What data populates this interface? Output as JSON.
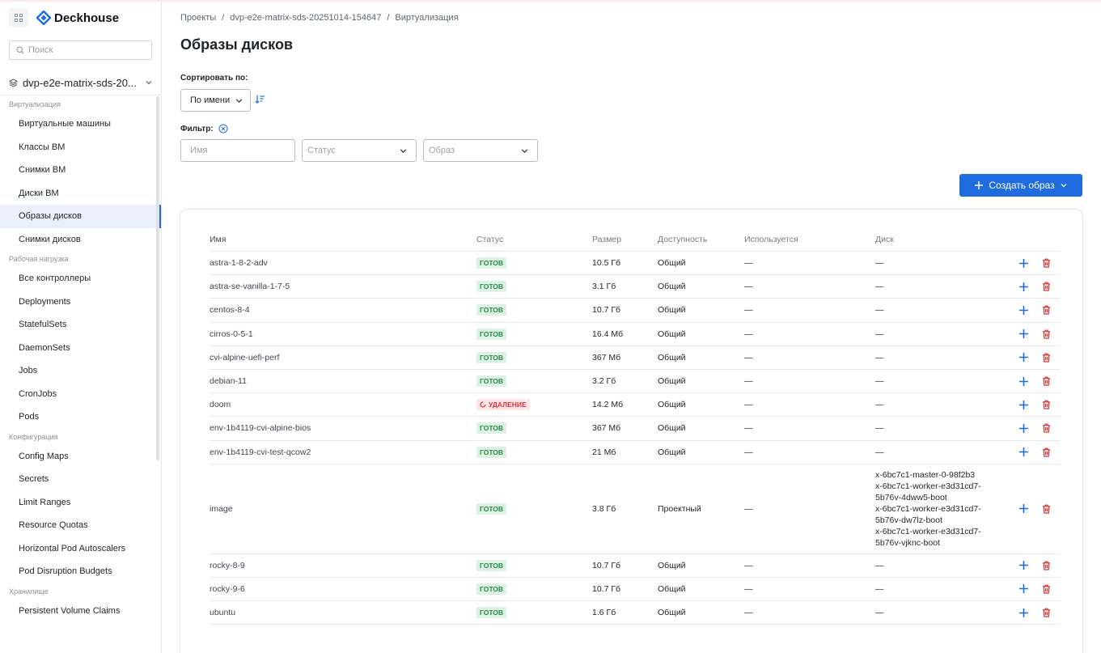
{
  "app": {
    "name": "Deckhouse"
  },
  "sidebar": {
    "search_placeholder": "Поиск",
    "project": "dvp-e2e-matrix-sds-20...",
    "groups": [
      {
        "title": "Виртуализация",
        "items": [
          "Виртуальные машины",
          "Классы ВМ",
          "Снимки ВМ",
          "Диски ВМ",
          "Образы дисков",
          "Снимки дисков"
        ]
      },
      {
        "title": "Рабочая нагрузка",
        "items": [
          "Все контроллеры",
          "Deployments",
          "StatefulSets",
          "DaemonSets",
          "Jobs",
          "CronJobs",
          "Pods"
        ]
      },
      {
        "title": "Конфигурация",
        "items": [
          "Config Maps",
          "Secrets",
          "Limit Ranges",
          "Resource Quotas",
          "Horizontal Pod Autoscalers",
          "Pod Disruption Budgets"
        ]
      },
      {
        "title": "Хранилище",
        "items": [
          "Persistent Volume Claims"
        ]
      }
    ],
    "active_item": "Образы дисков"
  },
  "breadcrumb": [
    "Проекты",
    "dvp-e2e-matrix-sds-20251014-154647",
    "Виртуализация"
  ],
  "page": {
    "title": "Образы дисков",
    "sort_label": "Сортировать по:",
    "sort_value": "По имени",
    "filter_label": "Фильтр:",
    "filter_name_placeholder": "Имя",
    "filter_status_placeholder": "Статус",
    "filter_image_placeholder": "Образ",
    "create_button": "Создать образ"
  },
  "table": {
    "columns": [
      "Имя",
      "Статус",
      "Размер",
      "Доступность",
      "Используется",
      "Диск"
    ],
    "rows": [
      {
        "name": "astra-1-8-2-adv",
        "status": "ГОТОВ",
        "status_type": "ok",
        "size": "10.5 Гб",
        "access": "Общий",
        "used": "—",
        "disk": [
          "—"
        ]
      },
      {
        "name": "astra-se-vanilla-1-7-5",
        "status": "ГОТОВ",
        "status_type": "ok",
        "size": "3.1 Гб",
        "access": "Общий",
        "used": "—",
        "disk": [
          "—"
        ]
      },
      {
        "name": "centos-8-4",
        "status": "ГОТОВ",
        "status_type": "ok",
        "size": "10.7 Гб",
        "access": "Общий",
        "used": "—",
        "disk": [
          "—"
        ]
      },
      {
        "name": "cirros-0-5-1",
        "status": "ГОТОВ",
        "status_type": "ok",
        "size": "16.4 Мб",
        "access": "Общий",
        "used": "—",
        "disk": [
          "—"
        ]
      },
      {
        "name": "cvi-alpine-uefi-perf",
        "status": "ГОТОВ",
        "status_type": "ok",
        "size": "367 Мб",
        "access": "Общий",
        "used": "—",
        "disk": [
          "—"
        ]
      },
      {
        "name": "debian-11",
        "status": "ГОТОВ",
        "status_type": "ok",
        "size": "3.2 Гб",
        "access": "Общий",
        "used": "—",
        "disk": [
          "—"
        ]
      },
      {
        "name": "doom",
        "status": "УДАЛЕНИЕ",
        "status_type": "del",
        "size": "14.2 Мб",
        "access": "Общий",
        "used": "—",
        "disk": [
          "—"
        ]
      },
      {
        "name": "env-1b4119-cvi-alpine-bios",
        "status": "ГОТОВ",
        "status_type": "ok",
        "size": "367 Мб",
        "access": "Общий",
        "used": "—",
        "disk": [
          "—"
        ]
      },
      {
        "name": "env-1b4119-cvi-test-qcow2",
        "status": "ГОТОВ",
        "status_type": "ok",
        "size": "21 Мб",
        "access": "Общий",
        "used": "—",
        "disk": [
          "—"
        ]
      },
      {
        "name": "image",
        "status": "ГОТОВ",
        "status_type": "ok",
        "size": "3.8 Гб",
        "access": "Проектный",
        "used": "—",
        "disk": [
          "x-6bc7c1-master-0-98f2b3",
          "x-6bc7c1-worker-e3d31cd7-",
          "5b76v-4dww5-boot",
          "x-6bc7c1-worker-e3d31cd7-",
          "5b76v-dw7lz-boot",
          "x-6bc7c1-worker-e3d31cd7-",
          "5b76v-vjknc-boot"
        ]
      },
      {
        "name": "rocky-8-9",
        "status": "ГОТОВ",
        "status_type": "ok",
        "size": "10.7 Гб",
        "access": "Общий",
        "used": "—",
        "disk": [
          "—"
        ]
      },
      {
        "name": "rocky-9-6",
        "status": "ГОТОВ",
        "status_type": "ok",
        "size": "10.7 Гб",
        "access": "Общий",
        "used": "—",
        "disk": [
          "—"
        ]
      },
      {
        "name": "ubuntu",
        "status": "ГОТОВ",
        "status_type": "ok",
        "size": "1.6 Гб",
        "access": "Общий",
        "used": "—",
        "disk": [
          "—"
        ]
      }
    ]
  },
  "colors": {
    "accent": "#1f6ce0",
    "danger": "#d93030",
    "ok": "#2b8a48"
  }
}
